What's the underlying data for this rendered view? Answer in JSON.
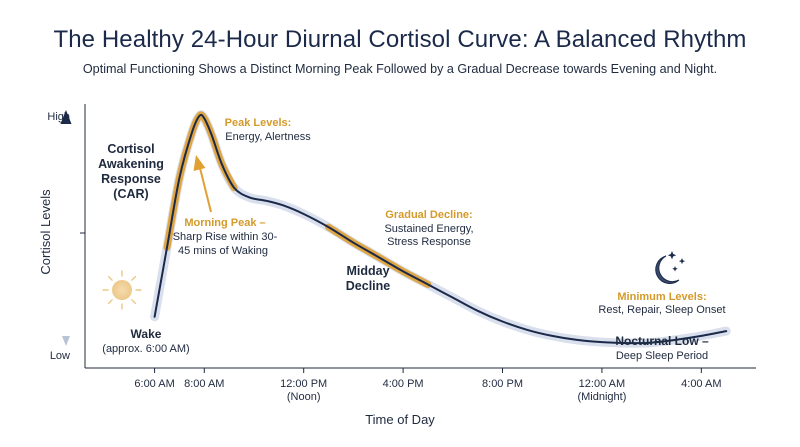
{
  "header": {
    "title": "The Healthy 24-Hour Diurnal Cortisol Curve: A Balanced Rhythm",
    "subtitle": "Optimal Functioning Shows a Distinct Morning Peak Followed by a Gradual Decrease towards Evening and Night."
  },
  "chart_data": {
    "type": "line",
    "title": "The Healthy 24-Hour Diurnal Cortisol Curve: A Balanced Rhythm",
    "subtitle": "Optimal Functioning Shows a Distinct Morning Peak Followed by a Gradual Decrease towards Evening and Night.",
    "xlabel": "Time of Day",
    "ylabel": "Cortisol Levels",
    "x_unit": "hours since 6:00 AM",
    "x_ticks": [
      {
        "x": 0,
        "label": "6:00 AM",
        "sub": ""
      },
      {
        "x": 2,
        "label": "8:00 AM",
        "sub": ""
      },
      {
        "x": 6,
        "label": "12:00 PM",
        "sub": "(Noon)"
      },
      {
        "x": 10,
        "label": "4:00 PM",
        "sub": ""
      },
      {
        "x": 14,
        "label": "8:00 PM",
        "sub": ""
      },
      {
        "x": 18,
        "label": "12:00 AM",
        "sub": "(Midnight)"
      },
      {
        "x": 22,
        "label": "4:00 AM",
        "sub": ""
      }
    ],
    "y_ticks": [
      {
        "y": 0,
        "label": "Low"
      },
      {
        "y": 1,
        "label": "High"
      }
    ],
    "xlim": [
      -2.8,
      24.2
    ],
    "ylim": [
      0,
      1
    ],
    "grid": false,
    "legend": "none",
    "series": [
      {
        "x": [
          0,
          0.5,
          1,
          1.5,
          1.8,
          2,
          2.3,
          2.7,
          3.2,
          3.8,
          4.5,
          5.2,
          6,
          7,
          8,
          9,
          10,
          11,
          12,
          13,
          14,
          15,
          16,
          17,
          18,
          19,
          19.6,
          20,
          21,
          22,
          23
        ],
        "y": [
          0.16,
          0.45,
          0.74,
          0.93,
          1.0,
          0.99,
          0.92,
          0.8,
          0.7,
          0.66,
          0.645,
          0.625,
          0.59,
          0.535,
          0.47,
          0.41,
          0.35,
          0.295,
          0.24,
          0.185,
          0.14,
          0.105,
          0.08,
          0.063,
          0.054,
          0.05,
          0.05,
          0.052,
          0.064,
          0.08,
          0.1
        ],
        "color": "#1b2a4a"
      }
    ],
    "colors": {
      "curve": "#1b2a4a",
      "highlight": "#e0a032",
      "annotation": "#d49a2a",
      "glow": "#c9d2e4"
    },
    "icons": [
      "sun-icon",
      "moon-stars-icon"
    ],
    "annotations": [
      {
        "id": "car",
        "lines": [
          "Cortisol",
          "Awakening",
          "Response",
          "(CAR)"
        ],
        "style": "bold"
      },
      {
        "id": "wake",
        "lines": [
          "Wake",
          "(approx. 6:00 AM)"
        ]
      },
      {
        "id": "peak",
        "heading": "Peak Levels:",
        "lines": [
          "Energy, Alertness"
        ]
      },
      {
        "id": "morning",
        "heading": "Morning Peak –",
        "lines": [
          "Sharp Rise within 30-",
          "45 mins of Waking"
        ]
      },
      {
        "id": "midday",
        "lines": [
          "Midday",
          "Decline"
        ],
        "style": "bold"
      },
      {
        "id": "gradual",
        "heading": "Gradual Decline:",
        "lines": [
          "Sustained Energy,",
          "Stress Response"
        ]
      },
      {
        "id": "minimum",
        "heading": "Minimum Levels:",
        "lines": [
          "Rest, Repair, Sleep Onset"
        ]
      },
      {
        "id": "nocturnal",
        "lines": [
          "Nocturnal Low –",
          "Deep Sleep Period"
        ]
      }
    ]
  }
}
